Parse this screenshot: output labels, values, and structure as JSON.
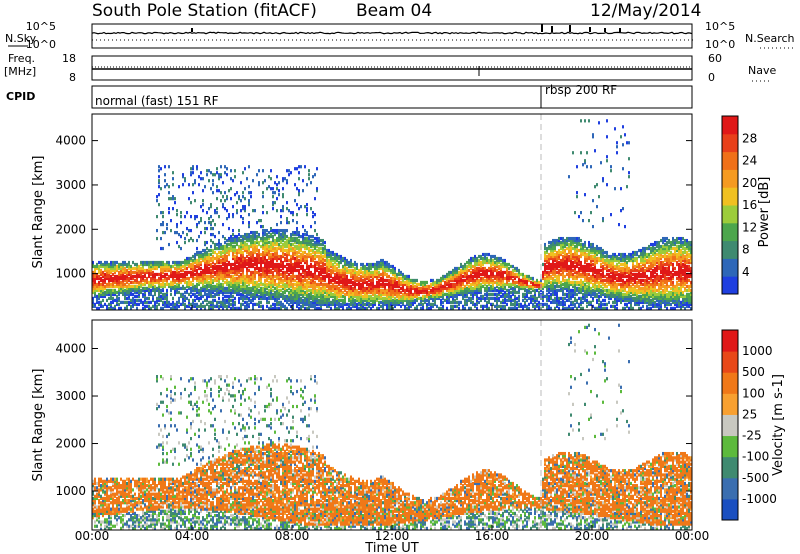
{
  "header": {
    "station": "South Pole Station (fitACF)",
    "beam": "Beam 04",
    "date": "12/May/2014"
  },
  "panels": {
    "nsky_label": "N.Sky",
    "nsearch_label": "N.Search",
    "nsky_ticks": [
      "10^5",
      "10^0"
    ],
    "nsearch_ticks": [
      "10^5",
      "10^0"
    ],
    "freq_label": "Freq.",
    "freq_unit": "[MHz]",
    "freq_ticks": [
      "18",
      "8"
    ],
    "nave_label": "Nave",
    "nave_ticks": [
      "60",
      "0"
    ],
    "cpid_label": "CPID",
    "cpid_segments": [
      "normal (fast) 151 RF",
      "rbsp 200 RF"
    ]
  },
  "chart_data": [
    {
      "type": "heatmap",
      "name": "power",
      "ylabel": "Slant Range [km]",
      "xlabel": "Time UT",
      "xlim": [
        "00:00",
        "24:00"
      ],
      "ylim": [
        180,
        4600
      ],
      "x_ticks": [
        "00:00",
        "04:00",
        "08:00",
        "12:00",
        "16:00",
        "20:00",
        "00:00"
      ],
      "y_ticks": [
        1000,
        2000,
        3000,
        4000
      ],
      "colorbar": {
        "label": "Power [dB]",
        "ticks": [
          4,
          8,
          12,
          16,
          20,
          24,
          28
        ],
        "colors": [
          "#1f3fe0",
          "#2e67b8",
          "#3f8a70",
          "#4ca64c",
          "#9ccc3a",
          "#f0c020",
          "#f59a20",
          "#f07018",
          "#e8401a",
          "#e01818"
        ]
      }
    },
    {
      "type": "heatmap",
      "name": "velocity",
      "ylabel": "Slant Range [km]",
      "xlabel": "Time UT",
      "xlim": [
        "00:00",
        "24:00"
      ],
      "ylim": [
        180,
        4600
      ],
      "x_ticks": [
        "00:00",
        "04:00",
        "08:00",
        "12:00",
        "16:00",
        "20:00",
        "00:00"
      ],
      "y_ticks": [
        1000,
        2000,
        3000,
        4000
      ],
      "colorbar": {
        "label": "Velocity [m s-1]",
        "ticks": [
          "1000",
          "500",
          "100",
          "25",
          "-25",
          "-100",
          "-500",
          "-1000"
        ],
        "colors": [
          "#1a4fc0",
          "#3a6eb0",
          "#3f8a70",
          "#5cba3c",
          "#c8c8c0",
          "#f8a030",
          "#f07818",
          "#e84818",
          "#e01818"
        ]
      }
    }
  ]
}
